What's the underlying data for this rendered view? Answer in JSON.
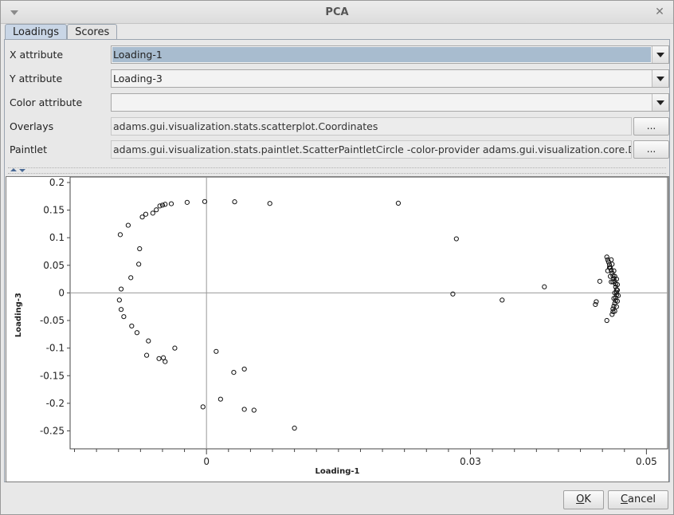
{
  "window": {
    "title": "PCA"
  },
  "tabs": [
    {
      "label": "Loadings",
      "active": true
    },
    {
      "label": "Scores",
      "active": false
    }
  ],
  "fields": {
    "x_attribute": {
      "label": "X attribute",
      "value": "Loading-1"
    },
    "y_attribute": {
      "label": "Y attribute",
      "value": "Loading-3"
    },
    "color_attribute": {
      "label": "Color attribute",
      "value": ""
    },
    "overlays": {
      "label": "Overlays",
      "value": "adams.gui.visualization.stats.scatterplot.Coordinates",
      "button": "..."
    },
    "paintlet": {
      "label": "Paintlet",
      "value": "adams.gui.visualization.stats.paintlet.ScatterPaintletCircle -color-provider adams.gui.visualization.core.D",
      "button": "..."
    }
  },
  "buttons": {
    "ok_pre": "",
    "ok_mn": "O",
    "ok_post": "K",
    "cancel_pre": "",
    "cancel_mn": "C",
    "cancel_post": "ancel"
  },
  "colors": {
    "selected_field": "#a8bccf",
    "tab_active": "#c9d6e6",
    "splitter_arrow": "#4a6a95"
  },
  "icons": {
    "window_menu": "chevron-down-icon",
    "window_close": "close-icon",
    "combo_arrow": "triangle-down-icon"
  },
  "chart_data": {
    "type": "scatter",
    "title": "",
    "xlabel": "Loading-1",
    "ylabel": "Loading-3",
    "xlim": [
      -0.0155,
      0.0525
    ],
    "ylim": [
      -0.2825,
      0.21
    ],
    "x_ticks": [
      {
        "value": 0,
        "label": "0"
      },
      {
        "value": 0.03,
        "label": "0.03"
      },
      {
        "value": 0.05,
        "label": "0.05"
      }
    ],
    "y_ticks": [
      {
        "value": 0.2,
        "label": "0.2"
      },
      {
        "value": 0.15,
        "label": "0.15"
      },
      {
        "value": 0.1,
        "label": "0.1"
      },
      {
        "value": 0.05,
        "label": "0.05"
      },
      {
        "value": 0,
        "label": "0"
      },
      {
        "value": -0.05,
        "label": "-0.05"
      },
      {
        "value": -0.1,
        "label": "-0.1"
      },
      {
        "value": -0.15,
        "label": "-0.15"
      },
      {
        "value": -0.2,
        "label": "-0.2"
      },
      {
        "value": -0.25,
        "label": "-0.25"
      }
    ],
    "x_minor_ticks": [
      -0.015,
      -0.0125,
      -0.01,
      -0.0075,
      -0.005,
      -0.0025,
      0.0025,
      0.005,
      0.0075,
      0.01,
      0.0125,
      0.015,
      0.0175,
      0.02,
      0.0225,
      0.025,
      0.0275,
      0.0325,
      0.035,
      0.0375,
      0.04,
      0.0425,
      0.045,
      0.0475
    ],
    "crosshair": {
      "x": 0,
      "y": 0
    },
    "points": [
      [
        -0.0098,
        0.1055
      ],
      [
        -0.0089,
        0.1225
      ],
      [
        -0.0073,
        0.1375
      ],
      [
        -0.0069,
        0.1425
      ],
      [
        -0.0061,
        0.1445
      ],
      [
        -0.0057,
        0.1505
      ],
      [
        -0.0053,
        0.1575
      ],
      [
        -0.005,
        0.159
      ],
      [
        -0.0047,
        0.1605
      ],
      [
        -0.004,
        0.1615
      ],
      [
        -0.0022,
        0.164
      ],
      [
        -0.0002,
        0.1655
      ],
      [
        0.0032,
        0.165
      ],
      [
        0.0072,
        0.162
      ],
      [
        0.0218,
        0.1625
      ],
      [
        0.0284,
        0.098
      ],
      [
        -0.0076,
        0.08
      ],
      [
        -0.0077,
        0.052
      ],
      [
        -0.0086,
        0.0275
      ],
      [
        -0.0097,
        0.007
      ],
      [
        -0.0099,
        -0.013
      ],
      [
        -0.0097,
        -0.03
      ],
      [
        -0.0094,
        -0.043
      ],
      [
        -0.0085,
        -0.06
      ],
      [
        -0.0079,
        -0.072
      ],
      [
        -0.0066,
        -0.087
      ],
      [
        -0.0068,
        -0.113
      ],
      [
        -0.0054,
        -0.119
      ],
      [
        -0.0049,
        -0.1175
      ],
      [
        -0.0047,
        -0.1245
      ],
      [
        -0.0036,
        -0.1
      ],
      [
        0.0011,
        -0.106
      ],
      [
        0.0043,
        -0.138
      ],
      [
        0.0031,
        -0.144
      ],
      [
        0.0016,
        -0.1925
      ],
      [
        0.0043,
        -0.211
      ],
      [
        0.0054,
        -0.2125
      ],
      [
        -0.0004,
        -0.2065
      ],
      [
        0.01,
        -0.245
      ],
      [
        0.028,
        -0.002
      ],
      [
        0.0336,
        -0.013
      ],
      [
        0.0384,
        0.011
      ],
      [
        0.0447,
        0.021
      ],
      [
        0.0443,
        -0.016
      ],
      [
        0.0442,
        -0.021
      ],
      [
        0.0455,
        -0.05
      ],
      [
        0.0455,
        0.065
      ],
      [
        0.0456,
        0.06
      ],
      [
        0.0457,
        0.056
      ],
      [
        0.0458,
        0.051
      ],
      [
        0.0459,
        0.046
      ],
      [
        0.046,
        0.041
      ],
      [
        0.0461,
        0.036
      ],
      [
        0.0462,
        0.031
      ],
      [
        0.0463,
        0.026
      ],
      [
        0.0464,
        0.021
      ],
      [
        0.0465,
        0.016
      ],
      [
        0.0465,
        0.011
      ],
      [
        0.0466,
        0.006
      ],
      [
        0.0466,
        0.001
      ],
      [
        0.0466,
        -0.004
      ],
      [
        0.0465,
        -0.009
      ],
      [
        0.0465,
        -0.014
      ],
      [
        0.0464,
        -0.019
      ],
      [
        0.0463,
        -0.024
      ],
      [
        0.0462,
        -0.029
      ],
      [
        0.0462,
        -0.034
      ],
      [
        0.0461,
        -0.039
      ],
      [
        0.0458,
        0.046
      ],
      [
        0.0461,
        0.052
      ],
      [
        0.0463,
        0.04
      ],
      [
        0.0464,
        0.03
      ],
      [
        0.0462,
        0.02
      ],
      [
        0.0466,
        0.025
      ],
      [
        0.0467,
        0.015
      ],
      [
        0.0467,
        0.005
      ],
      [
        0.0468,
        -0.005
      ],
      [
        0.0467,
        -0.015
      ],
      [
        0.0466,
        -0.025
      ],
      [
        0.0464,
        -0.033
      ],
      [
        0.0463,
        -0.01
      ],
      [
        0.0464,
        0.0
      ],
      [
        0.0459,
        0.03
      ],
      [
        0.046,
        0.02
      ],
      [
        0.0456,
        0.04
      ],
      [
        0.046,
        0.06
      ]
    ]
  }
}
